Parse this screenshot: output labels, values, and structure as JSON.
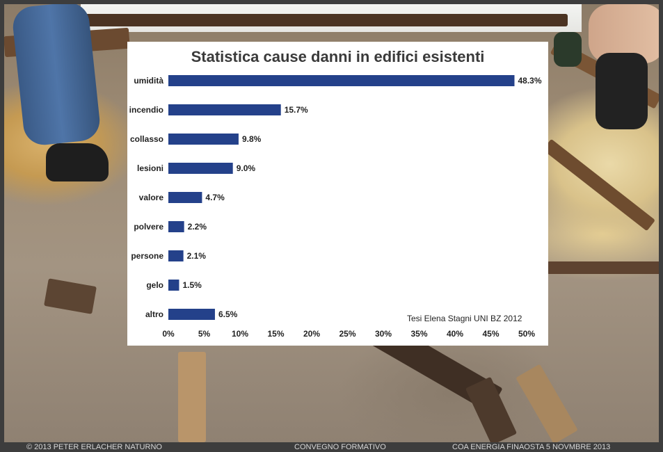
{
  "footer": {
    "copyright": "© 2013 PETER ERLACHER NATURNO",
    "event": "CONVEGNO FORMATIVO",
    "organizer_date": "COA ENERGIA FINAOSTA   5 NOVMBRE 2013"
  },
  "chart_data": {
    "type": "bar",
    "orientation": "horizontal",
    "title": "Statistica cause danni in edifici esistenti",
    "source": "Tesi Elena Stagni UNI BZ 2012",
    "categories": [
      "umidità",
      "incendio",
      "collasso",
      "lesioni",
      "valore",
      "polvere",
      "persone",
      "gelo",
      "altro"
    ],
    "values": [
      48.3,
      15.7,
      9.8,
      9.0,
      4.7,
      2.2,
      2.1,
      1.5,
      6.5
    ],
    "value_labels": [
      "48.3%",
      "15.7%",
      "9.8%",
      "9.0%",
      "4.7%",
      "2.2%",
      "2.1%",
      "1.5%",
      "6.5%"
    ],
    "xlim": [
      0,
      50
    ],
    "xticks": [
      "0%",
      "5%",
      "10%",
      "15%",
      "20%",
      "25%",
      "30%",
      "35%",
      "40%",
      "45%",
      "50%"
    ],
    "bar_color": "#24418a",
    "grid": false,
    "legend": false
  }
}
